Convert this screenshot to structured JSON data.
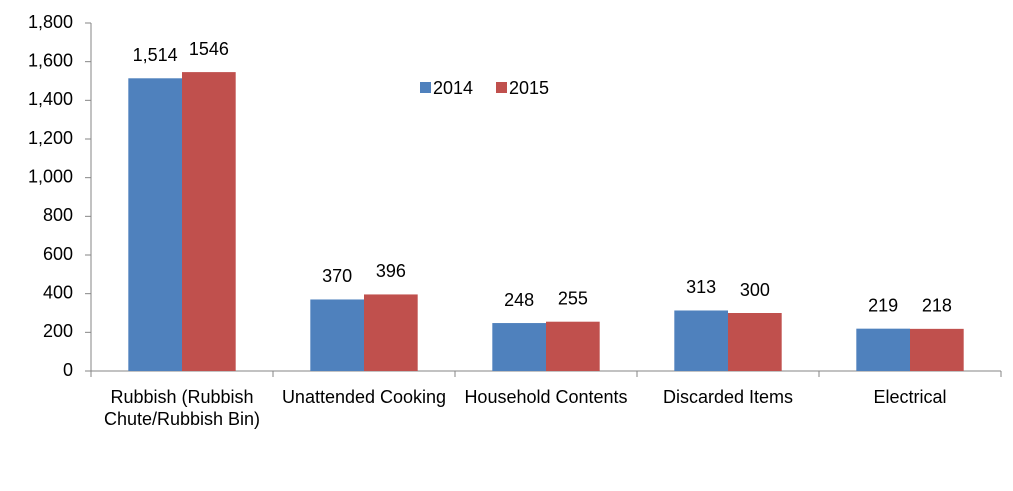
{
  "chart_data": {
    "type": "bar",
    "categories": [
      "Rubbish (Rubbish Chute/Rubbish Bin)",
      "Unattended Cooking",
      "Household Contents",
      "Discarded Items",
      "Electrical"
    ],
    "series": [
      {
        "name": "2014",
        "color": "#4f81bd",
        "values": [
          1514,
          370,
          248,
          313,
          219
        ],
        "value_labels": [
          "1,514",
          "370",
          "248",
          "313",
          "219"
        ]
      },
      {
        "name": "2015",
        "color": "#c0504d",
        "values": [
          1546,
          396,
          255,
          300,
          218
        ]
      }
    ],
    "ylim": [
      0,
      1800
    ],
    "yticks": [
      0,
      200,
      400,
      600,
      800,
      {
        "value": 1000,
        "label": "1,000"
      },
      {
        "value": 1200,
        "label": "1,200"
      },
      {
        "value": 1400,
        "label": "1,400"
      },
      {
        "value": 1600,
        "label": "1,600"
      },
      {
        "value": 1800,
        "label": "1,800"
      }
    ],
    "grid": false,
    "legend": "top"
  }
}
